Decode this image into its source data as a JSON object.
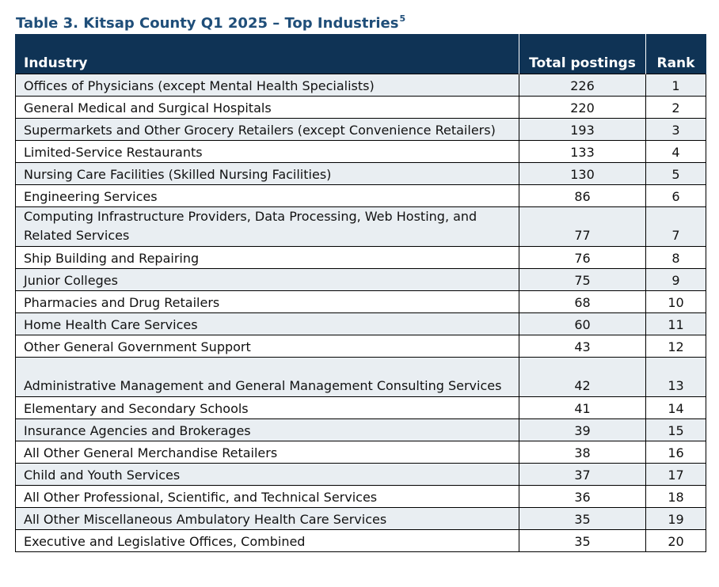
{
  "caption": {
    "text": "Table 3. Kitsap County Q1 2025 – Top Industries",
    "footnote": "5"
  },
  "table": {
    "headers": [
      "Industry",
      "Total postings",
      "Rank"
    ],
    "rows": [
      [
        "Offices of Physicians (except Mental Health Specialists)",
        "226",
        "1"
      ],
      [
        "General Medical and Surgical Hospitals",
        "220",
        "2"
      ],
      [
        "Supermarkets and Other Grocery Retailers (except Convenience Retailers)",
        "193",
        "3"
      ],
      [
        "Limited-Service Restaurants",
        "133",
        "4"
      ],
      [
        "Nursing Care Facilities (Skilled Nursing Facilities)",
        "130",
        "5"
      ],
      [
        "Engineering Services",
        "86",
        "6"
      ],
      [
        "Computing Infrastructure Providers, Data Processing, Web Hosting, and Related Services",
        "77",
        "7"
      ],
      [
        "Ship Building and Repairing",
        "76",
        "8"
      ],
      [
        "Junior Colleges",
        "75",
        "9"
      ],
      [
        "Pharmacies and Drug Retailers",
        "68",
        "10"
      ],
      [
        "Home Health Care Services",
        "60",
        "11"
      ],
      [
        "Other General Government Support",
        "43",
        "12"
      ],
      [
        "Administrative Management and General Management Consulting Services",
        "42",
        "13"
      ],
      [
        "Elementary and Secondary Schools",
        "41",
        "14"
      ],
      [
        "Insurance Agencies and Brokerages",
        "39",
        "15"
      ],
      [
        "All Other General Merchandise Retailers",
        "38",
        "16"
      ],
      [
        "Child and Youth Services",
        "37",
        "17"
      ],
      [
        "All Other Professional, Scientific, and Technical Services",
        "36",
        "18"
      ],
      [
        "All Other Miscellaneous Ambulatory Health Care Services",
        "35",
        "19"
      ],
      [
        "Executive and Legislative Offices, Combined",
        "35",
        "20"
      ]
    ]
  },
  "colors": {
    "header_bg": "#0f3355",
    "caption": "#1f4e79",
    "band": "#e9eef2"
  }
}
